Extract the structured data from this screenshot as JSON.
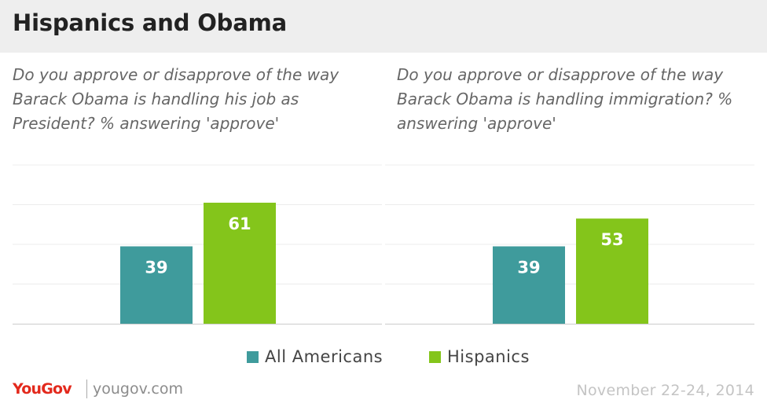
{
  "header": {
    "title": "Hispanics and Obama"
  },
  "colors": {
    "all_americans": "#3f9b9c",
    "hispanics": "#84c51b",
    "grid": "#ececec",
    "axis": "#cccccc"
  },
  "chart_data": [
    {
      "type": "bar",
      "title": "Do you approve or disapprove of the way Barack Obama is handling his job as President? % answering 'approve'",
      "categories": [
        "All Americans",
        "Hispanics"
      ],
      "series": [
        {
          "name": "approve",
          "values": [
            39,
            61
          ]
        }
      ],
      "ylim": [
        0,
        80
      ],
      "grid": true
    },
    {
      "type": "bar",
      "title": "Do you approve or disapprove of the way Barack Obama is handling immigration? % answering 'approve'",
      "categories": [
        "All Americans",
        "Hispanics"
      ],
      "series": [
        {
          "name": "approve",
          "values": [
            39,
            53
          ]
        }
      ],
      "ylim": [
        0,
        80
      ],
      "grid": true
    }
  ],
  "legend": {
    "placement": "bottom",
    "items": [
      {
        "label": "All Americans",
        "color": "#3f9b9c"
      },
      {
        "label": "Hispanics",
        "color": "#84c51b"
      }
    ]
  },
  "footer": {
    "logo": "YouGov",
    "site": "yougov.com",
    "date": "November 22-24, 2014"
  }
}
